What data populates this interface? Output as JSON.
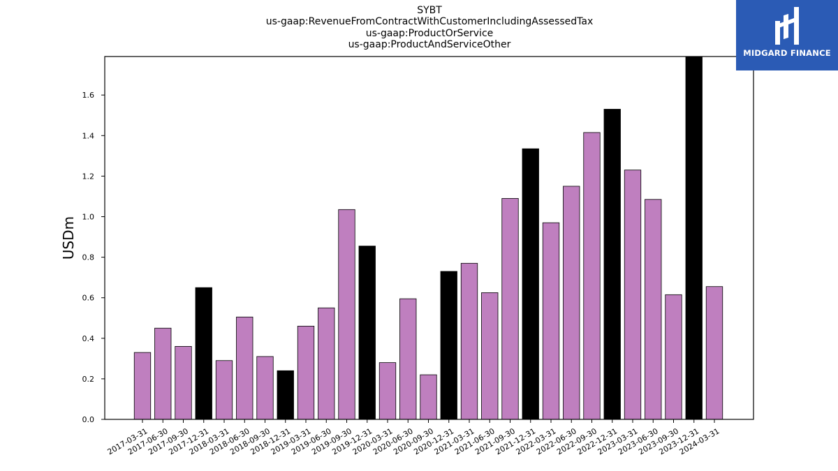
{
  "chart_data": {
    "type": "bar",
    "title_lines": [
      "SYBT",
      "us-gaap:RevenueFromContractWithCustomerIncludingAssessedTax",
      "us-gaap:ProductOrService",
      "us-gaap:ProductAndServiceOther"
    ],
    "ylabel": "USDm",
    "xlabel": "",
    "ylim": [
      0,
      1.79
    ],
    "yticks": [
      "0.0",
      "0.2",
      "0.4",
      "0.6",
      "0.8",
      "1.0",
      "1.2",
      "1.4",
      "1.6"
    ],
    "grid": false,
    "legend": "none",
    "colors": {
      "quarter": "#bf7fbf",
      "year_end": "#000000",
      "edge": "#000000"
    },
    "categories": [
      "2017-03-31",
      "2017-06-30",
      "2017-09-30",
      "2017-12-31",
      "2018-03-31",
      "2018-06-30",
      "2018-09-30",
      "2018-12-31",
      "2019-03-31",
      "2019-06-30",
      "2019-09-30",
      "2019-12-31",
      "2020-03-31",
      "2020-06-30",
      "2020-09-30",
      "2020-12-31",
      "2021-03-31",
      "2021-06-30",
      "2021-09-30",
      "2021-12-31",
      "2022-03-31",
      "2022-06-30",
      "2022-09-30",
      "2022-12-31",
      "2023-03-31",
      "2023-06-30",
      "2023-09-30",
      "2023-12-31",
      "2024-03-31"
    ],
    "values": [
      0.33,
      0.45,
      0.36,
      0.65,
      0.29,
      0.505,
      0.31,
      0.24,
      0.46,
      0.55,
      1.035,
      0.855,
      0.28,
      0.595,
      0.22,
      0.73,
      0.77,
      0.625,
      1.09,
      1.335,
      0.97,
      1.15,
      1.415,
      1.53,
      1.23,
      1.085,
      0.615,
      1.79,
      0.655
    ]
  },
  "logo": {
    "text": "MIDGARD FINANCE",
    "icon": "midgard-finance-logo-icon"
  }
}
